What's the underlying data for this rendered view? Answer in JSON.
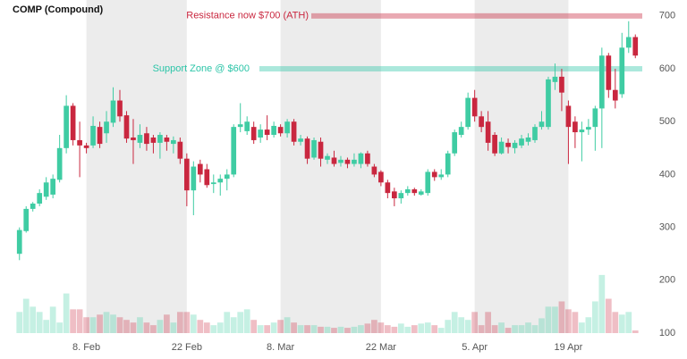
{
  "chart_data": {
    "type": "candlestick",
    "title": "COMP (Compound)",
    "categories": [
      null,
      null,
      null,
      null,
      null,
      null,
      null,
      null,
      null,
      null,
      "8. Feb",
      null,
      null,
      null,
      null,
      null,
      null,
      null,
      null,
      null,
      null,
      null,
      null,
      null,
      null,
      "22 Feb",
      null,
      null,
      null,
      null,
      null,
      null,
      null,
      null,
      null,
      null,
      null,
      null,
      null,
      "8. Mar",
      null,
      null,
      null,
      null,
      null,
      null,
      null,
      null,
      null,
      null,
      null,
      null,
      null,
      null,
      "22 Mar",
      null,
      null,
      null,
      null,
      null,
      null,
      null,
      null,
      null,
      null,
      null,
      null,
      null,
      "5. Apr",
      null,
      null,
      null,
      null,
      null,
      null,
      null,
      null,
      null,
      null,
      null,
      null,
      null,
      "19 Apr",
      null,
      null,
      null,
      null,
      null,
      null,
      null,
      null,
      null,
      null
    ],
    "open": [
      250,
      293,
      335,
      345,
      358,
      362,
      390,
      450,
      530,
      465,
      455,
      455,
      490,
      478,
      498,
      540,
      512,
      470,
      460,
      478,
      470,
      460,
      470,
      458,
      462,
      430,
      370,
      420,
      410,
      382,
      385,
      392,
      400,
      490,
      482,
      490,
      470,
      485,
      475,
      490,
      478,
      500,
      462,
      468,
      432,
      462,
      428,
      432,
      422,
      428,
      420,
      420,
      440,
      415,
      405,
      385,
      368,
      355,
      365,
      372,
      362,
      365,
      405,
      395,
      400,
      440,
      475,
      490,
      545,
      510,
      500,
      475,
      440,
      460,
      450,
      455,
      462,
      465,
      490,
      490,
      575,
      585,
      530,
      500,
      480,
      485,
      490,
      525,
      625,
      560,
      552,
      640,
      660
    ],
    "high": [
      300,
      340,
      348,
      372,
      395,
      400,
      475,
      550,
      535,
      500,
      460,
      510,
      500,
      520,
      565,
      560,
      520,
      505,
      495,
      490,
      475,
      480,
      475,
      472,
      470,
      440,
      425,
      428,
      420,
      400,
      400,
      410,
      495,
      535,
      510,
      500,
      495,
      512,
      500,
      495,
      505,
      505,
      475,
      472,
      470,
      470,
      440,
      445,
      435,
      432,
      440,
      442,
      445,
      420,
      408,
      390,
      375,
      370,
      378,
      375,
      372,
      410,
      410,
      410,
      445,
      485,
      500,
      555,
      560,
      520,
      520,
      480,
      470,
      468,
      465,
      475,
      478,
      495,
      520,
      585,
      610,
      600,
      540,
      510,
      500,
      505,
      530,
      640,
      630,
      600,
      668,
      690,
      665
    ],
    "low": [
      238,
      290,
      330,
      340,
      352,
      355,
      385,
      440,
      455,
      395,
      440,
      450,
      450,
      460,
      490,
      500,
      460,
      420,
      450,
      445,
      440,
      430,
      445,
      440,
      420,
      340,
      323,
      385,
      375,
      365,
      360,
      370,
      395,
      480,
      475,
      458,
      460,
      465,
      470,
      472,
      470,
      455,
      455,
      420,
      428,
      415,
      420,
      415,
      415,
      412,
      415,
      412,
      415,
      395,
      378,
      355,
      340,
      345,
      360,
      360,
      360,
      360,
      388,
      390,
      395,
      435,
      470,
      485,
      500,
      480,
      445,
      435,
      438,
      440,
      440,
      450,
      455,
      460,
      485,
      485,
      560,
      520,
      420,
      450,
      425,
      475,
      445,
      450,
      545,
      525,
      545,
      630,
      620
    ],
    "close": [
      295,
      335,
      345,
      365,
      385,
      392,
      450,
      530,
      465,
      455,
      450,
      492,
      458,
      500,
      540,
      510,
      468,
      465,
      475,
      458,
      460,
      475,
      462,
      465,
      430,
      370,
      415,
      400,
      380,
      385,
      392,
      400,
      490,
      495,
      500,
      465,
      485,
      475,
      492,
      478,
      500,
      462,
      468,
      430,
      465,
      430,
      435,
      420,
      428,
      420,
      428,
      440,
      420,
      400,
      385,
      365,
      355,
      365,
      372,
      365,
      368,
      405,
      395,
      400,
      440,
      480,
      490,
      545,
      510,
      490,
      460,
      440,
      462,
      452,
      460,
      468,
      470,
      490,
      500,
      580,
      585,
      555,
      490,
      480,
      485,
      490,
      525,
      625,
      560,
      540,
      640,
      660,
      625
    ],
    "volume": [
      140,
      165,
      150,
      140,
      125,
      150,
      120,
      175,
      145,
      145,
      130,
      130,
      135,
      140,
      135,
      130,
      125,
      120,
      130,
      120,
      115,
      125,
      135,
      120,
      140,
      140,
      135,
      125,
      120,
      115,
      120,
      140,
      130,
      140,
      145,
      125,
      115,
      115,
      120,
      125,
      130,
      120,
      115,
      115,
      115,
      112,
      112,
      110,
      112,
      110,
      112,
      115,
      118,
      125,
      120,
      115,
      112,
      118,
      112,
      115,
      118,
      120,
      115,
      110,
      125,
      140,
      130,
      125,
      140,
      115,
      140,
      115,
      120,
      110,
      115,
      115,
      120,
      115,
      128,
      150,
      150,
      160,
      145,
      140,
      120,
      130,
      160,
      210,
      165,
      140,
      135,
      140,
      105
    ],
    "up_color": "#3fcca3",
    "down_color": "#c9273f",
    "ylim": [
      100,
      720
    ],
    "yticks": [
      100,
      200,
      300,
      400,
      500,
      600,
      700
    ],
    "annotations": [
      {
        "text": "Resistance now $700 (ATH)",
        "value": 700,
        "color": "#c9273f"
      },
      {
        "text": "Support Zone @ $600",
        "value": 600,
        "color": "#2cc5a8"
      }
    ]
  }
}
